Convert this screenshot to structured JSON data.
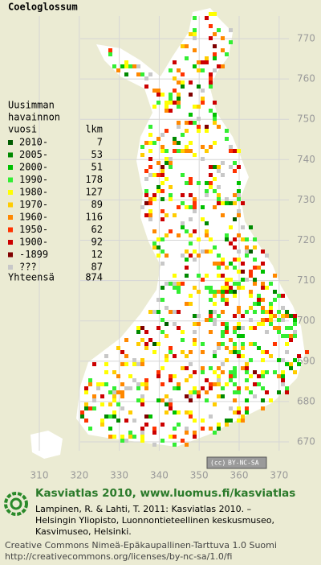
{
  "title": "Coeloglossum",
  "legend": {
    "title_lines": [
      "Uusimman",
      "havainnon",
      "vuosi"
    ],
    "count_header": "lkm",
    "items": [
      {
        "label": "2010-",
        "count": 7,
        "color": "#005c00"
      },
      {
        "label": "2005-",
        "count": 53,
        "color": "#008a00"
      },
      {
        "label": "2000-",
        "count": 51,
        "color": "#00c000"
      },
      {
        "label": "1990-",
        "count": 178,
        "color": "#33ee33"
      },
      {
        "label": "1980-",
        "count": 127,
        "color": "#ffff00"
      },
      {
        "label": "1970-",
        "count": 89,
        "color": "#ffcc00"
      },
      {
        "label": "1960-",
        "count": 116,
        "color": "#ff8800"
      },
      {
        "label": "1950-",
        "count": 62,
        "color": "#ff3300"
      },
      {
        "label": "1900-",
        "count": 92,
        "color": "#cc0000"
      },
      {
        "label": "-1899",
        "count": 12,
        "color": "#800000"
      },
      {
        "label": "???",
        "count": 87,
        "color": "#c8c8c8"
      }
    ],
    "total_label": "Yhteensä",
    "total": 874
  },
  "map": {
    "yticks": [
      670,
      680,
      690,
      700,
      710,
      720,
      730,
      740,
      750,
      760,
      770
    ],
    "xticks": [
      310,
      320,
      330,
      340,
      350,
      360,
      370
    ]
  },
  "badge": {
    "cc": "(cc)",
    "text": "BY-NC-SA"
  },
  "footer": {
    "site": "Kasviatlas 2010, www.luomus.fi/kasviatlas",
    "citation": [
      "Lampinen, R. & Lahti, T. 2011: Kasviatlas 2010. –",
      "Helsingin Yliopisto, Luonnontieteellinen keskusmuseo,",
      "Kasvimuseo, Helsinki."
    ],
    "license": [
      "Creative Commons Nimeä-Epäkaupallinen-Tarttuva 1.0 Suomi",
      "http://creativecommons.org/licenses/by-nc-sa/1.0/fi"
    ]
  }
}
